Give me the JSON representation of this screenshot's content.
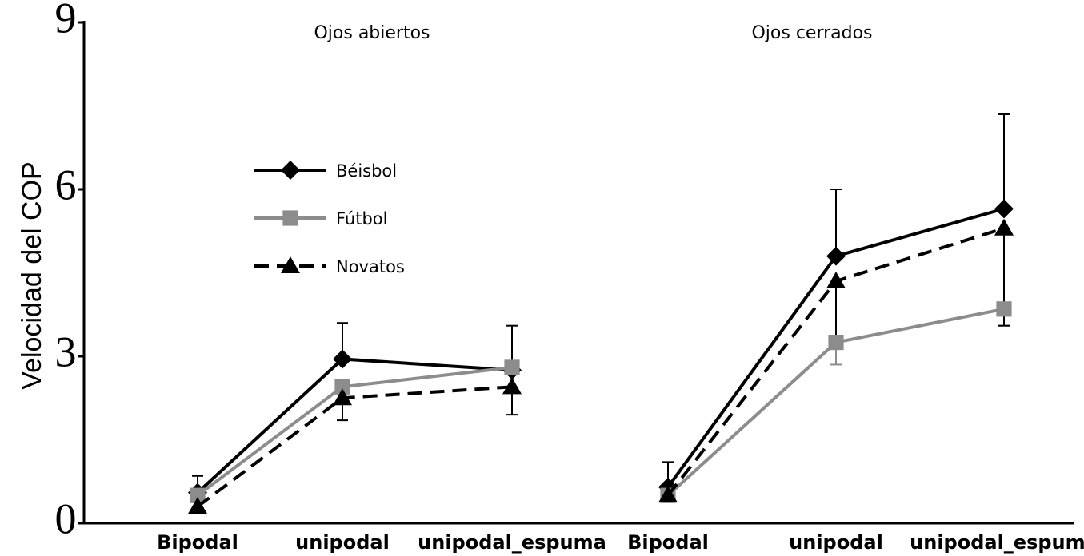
{
  "chart_data": {
    "type": "line",
    "ylabel": "Velocidad del COP",
    "ylim": [
      0,
      9
    ],
    "yticks": [
      0,
      3,
      6,
      9
    ],
    "error_direction": {
      "Béisbol": "up",
      "Fútbol": "down",
      "Novatos": "down"
    },
    "groups": [
      {
        "title": "Ojos abiertos",
        "categories": [
          "Bipodal",
          "unipodal",
          "unipodal_espuma"
        ]
      },
      {
        "title": "Ojos cerrados",
        "categories": [
          "Bipodal",
          "unipodal",
          "unipodal_espuma"
        ]
      }
    ],
    "series": [
      {
        "name": "Béisbol",
        "color": "#000000",
        "dash": false,
        "marker": "diamond",
        "values": [
          [
            0.55,
            2.95,
            2.75
          ],
          [
            0.65,
            4.8,
            5.65
          ]
        ],
        "errors": [
          [
            0.3,
            0.65,
            0.8
          ],
          [
            0.45,
            1.2,
            1.7
          ]
        ]
      },
      {
        "name": "Fútbol",
        "color": "#8c8c8c",
        "dash": false,
        "marker": "square",
        "values": [
          [
            0.5,
            2.45,
            2.8
          ],
          [
            0.5,
            3.25,
            3.85
          ]
        ],
        "errors": [
          [
            null,
            0.3,
            0.35
          ],
          [
            null,
            0.4,
            0.3
          ]
        ]
      },
      {
        "name": "Novatos",
        "color": "#000000",
        "dash": true,
        "marker": "triangle",
        "values": [
          [
            0.3,
            2.25,
            2.45
          ],
          [
            0.5,
            4.35,
            5.3
          ]
        ],
        "errors": [
          [
            null,
            0.4,
            0.5
          ],
          [
            null,
            1.0,
            1.75
          ]
        ]
      }
    ]
  }
}
